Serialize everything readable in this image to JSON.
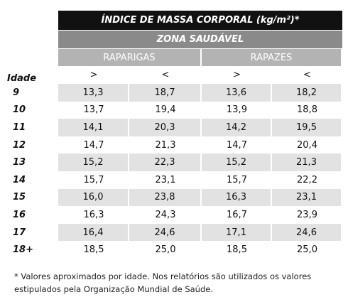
{
  "header": {
    "title": "ÍNDICE DE MASSA CORPORAL (kg/m²)*",
    "zone": "ZONA SAUDÁVEL",
    "groups": [
      "RAPARIGAS",
      "RAPAZES"
    ],
    "signs": [
      ">",
      "<",
      ">",
      "<"
    ],
    "age_label": "Idade"
  },
  "table": {
    "rows": [
      [
        "9",
        "13,3",
        "18,7",
        "13,6",
        "18,2"
      ],
      [
        "10",
        "13,7",
        "19,4",
        "13,9",
        "18,8"
      ],
      [
        "11",
        "14,1",
        "20,3",
        "14,2",
        "19,5"
      ],
      [
        "12",
        "14,7",
        "21,3",
        "14,7",
        "20,4"
      ],
      [
        "13",
        "15,2",
        "22,3",
        "15,2",
        "21,3"
      ],
      [
        "14",
        "15,7",
        "23,1",
        "15,7",
        "22,2"
      ],
      [
        "15",
        "16,0",
        "23,8",
        "16,3",
        "23,1"
      ],
      [
        "16",
        "16,3",
        "24,3",
        "16,7",
        "23,9"
      ],
      [
        "17",
        "16,4",
        "24,6",
        "17,1",
        "24,6"
      ],
      [
        "18+",
        "18,5",
        "25,0",
        "18,5",
        "25,0"
      ]
    ]
  },
  "footnote": [
    "* Valores aproximados por idade. Nos relatórios são utilizados os valores",
    "estipulados pela Organização Mundial de Saúde."
  ]
}
